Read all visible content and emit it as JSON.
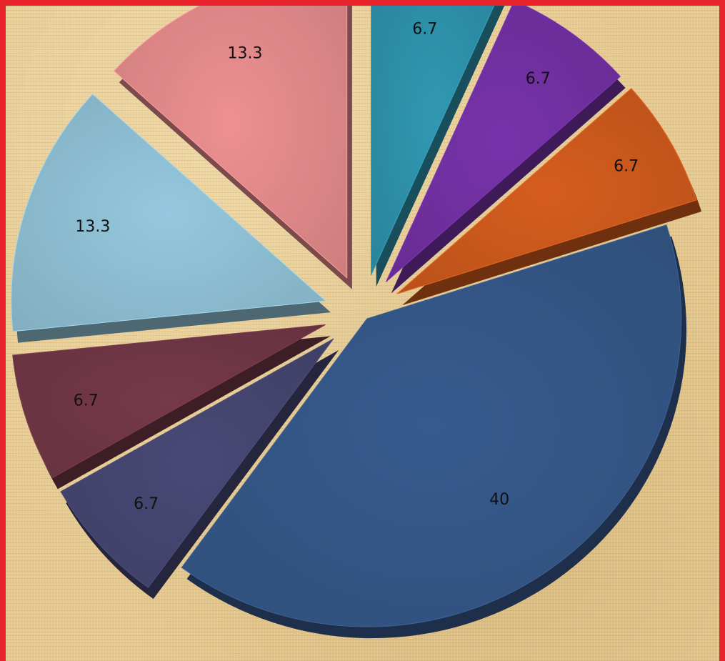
{
  "frame": {
    "border_color": "#e8222a"
  },
  "chart_data": {
    "type": "pie",
    "title": "",
    "slices": [
      {
        "value": 6.7,
        "label": "6.7",
        "color": "#2e8fa8"
      },
      {
        "value": 6.7,
        "label": "6.7",
        "color": "#7030a0"
      },
      {
        "value": 6.7,
        "label": "6.7",
        "color": "#c9581c"
      },
      {
        "value": 40,
        "label": "40",
        "color": "#345686"
      },
      {
        "value": 6.7,
        "label": "6.7",
        "color": "#44456e"
      },
      {
        "value": 6.7,
        "label": "6.7",
        "color": "#6f3645"
      },
      {
        "value": 13.3,
        "label": "13.3",
        "color": "#8dbdd1"
      },
      {
        "value": 13.3,
        "label": "13.3",
        "color": "#e08889"
      }
    ],
    "style": "3d-exploded",
    "legend": "none"
  }
}
